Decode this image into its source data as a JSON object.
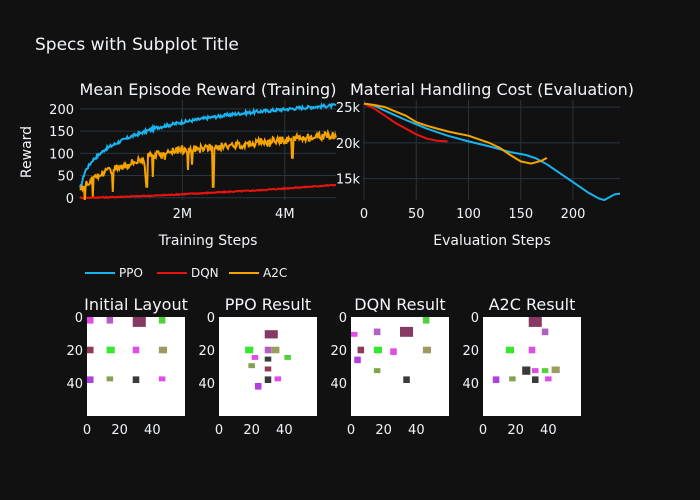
{
  "figure": {
    "title": "Specs with Subplot Title"
  },
  "chart_data": [
    {
      "type": "line",
      "title": "Mean Episode Reward (Training)",
      "xlabel": "Training Steps",
      "ylabel": "Reward",
      "xlim": [
        0,
        5000000
      ],
      "ylim": [
        -5,
        220
      ],
      "xticks": [
        {
          "v": 2000000,
          "label": "2M"
        },
        {
          "v": 4000000,
          "label": "4M"
        }
      ],
      "yticks": [
        {
          "v": 0,
          "label": "0"
        },
        {
          "v": 50,
          "label": "50"
        },
        {
          "v": 100,
          "label": "100"
        },
        {
          "v": 150,
          "label": "150"
        },
        {
          "v": 200,
          "label": "200"
        }
      ],
      "series": [
        {
          "name": "PPO",
          "color": "#19b3f0",
          "x": [
            0,
            100000,
            250000,
            500000,
            750000,
            1000000,
            1500000,
            2000000,
            2500000,
            3000000,
            3500000,
            4000000,
            4500000,
            5000000
          ],
          "y": [
            20,
            60,
            85,
            110,
            125,
            138,
            158,
            170,
            180,
            188,
            194,
            199,
            204,
            208
          ]
        },
        {
          "name": "DQN",
          "color": "#e8140c",
          "x": [
            0,
            500000,
            1000000,
            1500000,
            2000000,
            2500000,
            3000000,
            3500000,
            4000000,
            4500000,
            5000000
          ],
          "y": [
            0,
            1,
            3,
            5,
            8,
            11,
            14,
            17,
            21,
            25,
            29
          ]
        },
        {
          "name": "A2C",
          "color": "#f5a300",
          "x": [
            0,
            100000,
            300000,
            500000,
            800000,
            1000000,
            1300000,
            1600000,
            2000000,
            2300000,
            2600000,
            3000000,
            3500000,
            4000000,
            4300000,
            4600000,
            5000000
          ],
          "y": [
            20,
            30,
            45,
            60,
            70,
            80,
            90,
            102,
            108,
            110,
            113,
            118,
            125,
            130,
            135,
            138,
            140
          ]
        }
      ],
      "dips": [
        {
          "series": "A2C",
          "x": 1300000,
          "y": 25
        },
        {
          "series": "A2C",
          "x": 2600000,
          "y": 25
        },
        {
          "series": "A2C",
          "x": 4150000,
          "y": 90
        }
      ],
      "legend_position": "bottom-left"
    },
    {
      "type": "line",
      "title": "Material Handling Cost (Evaluation)",
      "xlabel": "Evaluation Steps",
      "ylabel": "",
      "xlim": [
        0,
        245
      ],
      "ylim": [
        12000,
        26000
      ],
      "xticks": [
        {
          "v": 0,
          "label": "0"
        },
        {
          "v": 50,
          "label": "50"
        },
        {
          "v": 100,
          "label": "100"
        },
        {
          "v": 150,
          "label": "150"
        },
        {
          "v": 200,
          "label": "200"
        }
      ],
      "yticks": [
        {
          "v": 15000,
          "label": "15k"
        },
        {
          "v": 20000,
          "label": "20k"
        },
        {
          "v": 25000,
          "label": "25k"
        }
      ],
      "series": [
        {
          "name": "PPO",
          "color": "#19b3f0",
          "x": [
            0,
            10,
            20,
            40,
            60,
            80,
            100,
            120,
            140,
            155,
            165,
            175,
            185,
            195,
            205,
            215,
            225,
            230,
            235,
            240,
            245
          ],
          "y": [
            25500,
            25200,
            24500,
            23200,
            22000,
            21000,
            20200,
            19500,
            18700,
            18300,
            17800,
            17000,
            16000,
            15000,
            14000,
            13000,
            12200,
            12000,
            12400,
            12800,
            12900
          ]
        },
        {
          "name": "DQN",
          "color": "#e8140c",
          "x": [
            0,
            10,
            20,
            30,
            40,
            50,
            60,
            70,
            80
          ],
          "y": [
            25500,
            24800,
            23800,
            22800,
            22000,
            21200,
            20600,
            20300,
            20200
          ]
        },
        {
          "name": "A2C",
          "color": "#f5a300",
          "x": [
            0,
            10,
            20,
            30,
            40,
            50,
            60,
            70,
            80,
            90,
            100,
            110,
            120,
            130,
            140,
            150,
            160,
            170,
            175
          ],
          "y": [
            25500,
            25300,
            25000,
            24400,
            23800,
            22900,
            22400,
            22000,
            21600,
            21300,
            21000,
            20500,
            20000,
            19300,
            18300,
            17400,
            17100,
            17500,
            17900
          ]
        }
      ]
    }
  ],
  "layouts": [
    {
      "title": "Initial Layout",
      "xticks": [
        "0",
        "20",
        "40"
      ],
      "yticks": [
        "0",
        "20",
        "40"
      ],
      "blocks": [
        {
          "x": 0,
          "y": 0,
          "w": 4,
          "h": 4,
          "c": "#e04ce6"
        },
        {
          "x": 12,
          "y": 0,
          "w": 4,
          "h": 4,
          "c": "#b15fc2"
        },
        {
          "x": 28,
          "y": 0,
          "w": 8,
          "h": 6,
          "c": "#863a62"
        },
        {
          "x": 44,
          "y": 0,
          "w": 4,
          "h": 4,
          "c": "#50d138"
        },
        {
          "x": 0,
          "y": 18,
          "w": 4,
          "h": 4,
          "c": "#8e3a58"
        },
        {
          "x": 12,
          "y": 18,
          "w": 5,
          "h": 4,
          "c": "#37e62f"
        },
        {
          "x": 28,
          "y": 18,
          "w": 4,
          "h": 4,
          "c": "#e04ce6"
        },
        {
          "x": 44,
          "y": 18,
          "w": 5,
          "h": 4,
          "c": "#9d9a61"
        },
        {
          "x": 0,
          "y": 36,
          "w": 4,
          "h": 4,
          "c": "#b13fe0"
        },
        {
          "x": 12,
          "y": 36,
          "w": 4,
          "h": 3,
          "c": "#84a14f"
        },
        {
          "x": 28,
          "y": 36,
          "w": 4,
          "h": 4,
          "c": "#3a3a3a"
        },
        {
          "x": 44,
          "y": 36,
          "w": 4,
          "h": 3,
          "c": "#e04ce6"
        }
      ]
    },
    {
      "title": "PPO Result",
      "xticks": [
        "0",
        "20",
        "40"
      ],
      "yticks": [
        "0",
        "20",
        "40"
      ],
      "blocks": [
        {
          "x": 28,
          "y": 8,
          "w": 8,
          "h": 5,
          "c": "#863a62"
        },
        {
          "x": 16,
          "y": 18,
          "w": 5,
          "h": 4,
          "c": "#37e62f"
        },
        {
          "x": 28,
          "y": 18,
          "w": 4,
          "h": 4,
          "c": "#b15fc2"
        },
        {
          "x": 32,
          "y": 18,
          "w": 5,
          "h": 4,
          "c": "#9d9a61"
        },
        {
          "x": 20,
          "y": 23,
          "w": 4,
          "h": 3,
          "c": "#e04ce6"
        },
        {
          "x": 28,
          "y": 24,
          "w": 4,
          "h": 3,
          "c": "#3a3a3a"
        },
        {
          "x": 40,
          "y": 23,
          "w": 4,
          "h": 3,
          "c": "#50d138"
        },
        {
          "x": 18,
          "y": 28,
          "w": 4,
          "h": 3,
          "c": "#84a14f"
        },
        {
          "x": 28,
          "y": 30,
          "w": 4,
          "h": 3,
          "c": "#8e3a58"
        },
        {
          "x": 28,
          "y": 36,
          "w": 4,
          "h": 4,
          "c": "#3a3a3a"
        },
        {
          "x": 34,
          "y": 36,
          "w": 4,
          "h": 3,
          "c": "#e04ce6"
        },
        {
          "x": 22,
          "y": 40,
          "w": 4,
          "h": 4,
          "c": "#b13fe0"
        }
      ]
    },
    {
      "title": "DQN Result",
      "xticks": [
        "0",
        "20",
        "40"
      ],
      "yticks": [
        "0",
        "20",
        "40"
      ],
      "blocks": [
        {
          "x": 44,
          "y": 0,
          "w": 4,
          "h": 4,
          "c": "#50d138"
        },
        {
          "x": 30,
          "y": 6,
          "w": 8,
          "h": 6,
          "c": "#863a62"
        },
        {
          "x": 14,
          "y": 7,
          "w": 4,
          "h": 4,
          "c": "#b15fc2"
        },
        {
          "x": 0,
          "y": 9,
          "w": 4,
          "h": 3,
          "c": "#e04ce6"
        },
        {
          "x": 4,
          "y": 18,
          "w": 4,
          "h": 4,
          "c": "#8e3a58"
        },
        {
          "x": 14,
          "y": 18,
          "w": 5,
          "h": 4,
          "c": "#37e62f"
        },
        {
          "x": 24,
          "y": 19,
          "w": 4,
          "h": 4,
          "c": "#e04ce6"
        },
        {
          "x": 44,
          "y": 18,
          "w": 5,
          "h": 4,
          "c": "#9d9a61"
        },
        {
          "x": 2,
          "y": 24,
          "w": 4,
          "h": 4,
          "c": "#b13fe0"
        },
        {
          "x": 14,
          "y": 31,
          "w": 4,
          "h": 3,
          "c": "#84a14f"
        },
        {
          "x": 32,
          "y": 36,
          "w": 4,
          "h": 4,
          "c": "#3a3a3a"
        }
      ]
    },
    {
      "title": "A2C Result",
      "xticks": [
        "0",
        "20",
        "40"
      ],
      "yticks": [
        "0",
        "20",
        "40"
      ],
      "blocks": [
        {
          "x": 28,
          "y": 0,
          "w": 8,
          "h": 6,
          "c": "#863a62"
        },
        {
          "x": 36,
          "y": 7,
          "w": 4,
          "h": 4,
          "c": "#b15fc2"
        },
        {
          "x": 14,
          "y": 18,
          "w": 5,
          "h": 4,
          "c": "#37e62f"
        },
        {
          "x": 28,
          "y": 18,
          "w": 4,
          "h": 4,
          "c": "#e04ce6"
        },
        {
          "x": 30,
          "y": 31,
          "w": 4,
          "h": 3,
          "c": "#e04ce6"
        },
        {
          "x": 24,
          "y": 30,
          "w": 5,
          "h": 5,
          "c": "#3a3a3a"
        },
        {
          "x": 36,
          "y": 31,
          "w": 4,
          "h": 3,
          "c": "#50d138"
        },
        {
          "x": 42,
          "y": 30,
          "w": 5,
          "h": 4,
          "c": "#9d9a61"
        },
        {
          "x": 6,
          "y": 36,
          "w": 4,
          "h": 4,
          "c": "#b13fe0"
        },
        {
          "x": 16,
          "y": 36,
          "w": 4,
          "h": 3,
          "c": "#84a14f"
        },
        {
          "x": 30,
          "y": 36,
          "w": 4,
          "h": 4,
          "c": "#3a3a3a"
        },
        {
          "x": 38,
          "y": 36,
          "w": 4,
          "h": 3,
          "c": "#e04ce6"
        }
      ]
    }
  ],
  "legend": [
    {
      "name": "PPO",
      "color": "#19b3f0"
    },
    {
      "name": "DQN",
      "color": "#e8140c"
    },
    {
      "name": "A2C",
      "color": "#f5a300"
    }
  ]
}
